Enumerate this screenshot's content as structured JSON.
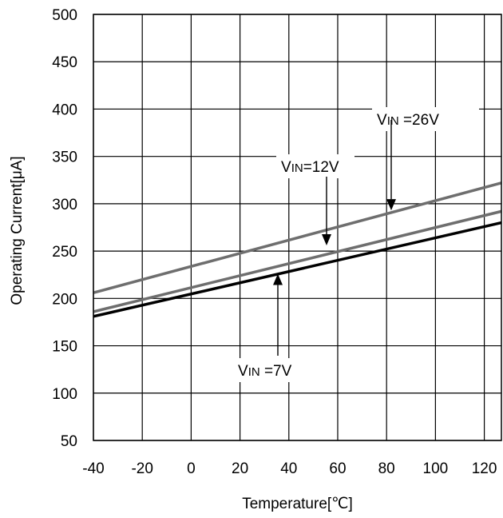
{
  "chart_data": {
    "type": "line",
    "title": "",
    "xlabel": "Temperature[℃]",
    "ylabel": "Operating Current[μA]",
    "xlim": [
      -40,
      127
    ],
    "ylim": [
      50,
      500
    ],
    "xticks": [
      -40,
      -20,
      0,
      20,
      40,
      60,
      80,
      100,
      120
    ],
    "yticks": [
      50,
      100,
      150,
      200,
      250,
      300,
      350,
      400,
      450,
      500
    ],
    "grid": true,
    "series": [
      {
        "name": "VIN =26V",
        "color": "#6e6e6e",
        "x": [
          -40,
          127
        ],
        "y": [
          206,
          322
        ]
      },
      {
        "name": "VIN=12V",
        "color": "#6e6e6e",
        "x": [
          -40,
          127
        ],
        "y": [
          186,
          292
        ]
      },
      {
        "name": "VIN =7V",
        "color": "#000000",
        "x": [
          -40,
          127
        ],
        "y": [
          181,
          280
        ]
      }
    ],
    "annotations": [
      {
        "series": 0,
        "main": "V",
        "sub": "IN",
        "rest": " =26V",
        "point": [
          81,
          293
        ]
      },
      {
        "series": 1,
        "main": "V",
        "sub": "IN",
        "rest": "=12V",
        "point": [
          55,
          256
        ]
      },
      {
        "series": 2,
        "main": "V",
        "sub": "IN",
        "rest": " =7V",
        "point": [
          35,
          226
        ]
      }
    ]
  }
}
